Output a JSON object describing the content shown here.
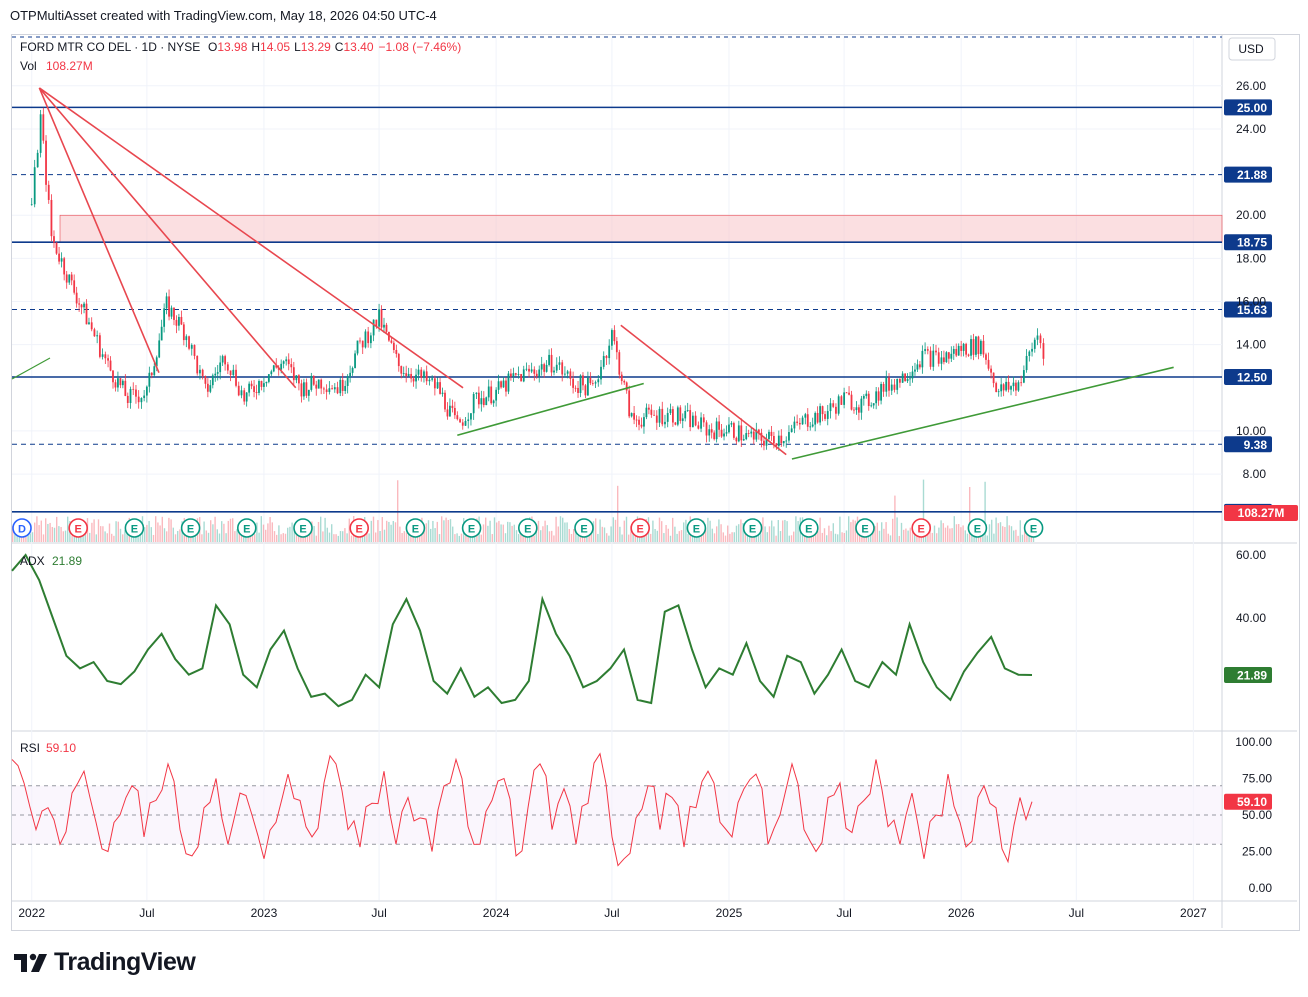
{
  "header": {
    "created_by": "OTPMultiAsset created with TradingView.com, May 18, 2026 04:50 UTC-4"
  },
  "footer": {
    "brand": "TradingView"
  },
  "colors": {
    "up": "#089981",
    "down": "#f23645",
    "level": "#0d3a8c",
    "trend_green": "#3f9a37",
    "trend_red": "#e8474f",
    "adx": "#2e7d32",
    "rsi": "#f23645",
    "zone": "#f7c5c8"
  },
  "chart_data": [
    {
      "type": "candlestick",
      "title": "FORD MTR CO DEL · 1D · NYSE",
      "ohlc": {
        "open_label": "O",
        "open": "13.98",
        "high_label": "H",
        "high": "14.05",
        "low_label": "L",
        "low": "13.29",
        "close_label": "C",
        "close": "13.40",
        "change": "−1.08 (−7.46%)"
      },
      "volume": {
        "label": "Vol",
        "value": "108.27M"
      },
      "currency": "USD",
      "yticks": [
        "26.00",
        "24.00",
        "20.00",
        "18.00",
        "16.00",
        "14.00",
        "10.00",
        "8.00"
      ],
      "ylim": [
        6.25,
        26.0
      ],
      "xticks": [
        "2022",
        "Jul",
        "2023",
        "Jul",
        "2024",
        "Jul",
        "2025",
        "Jul",
        "2026",
        "Jul",
        "2027"
      ],
      "horizontal_levels": [
        {
          "value": 25.0,
          "label": "25.00",
          "style": "solid"
        },
        {
          "value": 21.88,
          "label": "21.88",
          "style": "dashed"
        },
        {
          "value": 18.75,
          "label": "18.75",
          "style": "solid"
        },
        {
          "value": 15.63,
          "label": "15.63",
          "style": "dashed"
        },
        {
          "value": 12.5,
          "label": "12.50",
          "style": "solid"
        },
        {
          "value": 9.38,
          "label": "9.38",
          "style": "dashed"
        },
        {
          "value": 6.25,
          "label": "6.25",
          "style": "solid"
        }
      ],
      "resistance_zone": [
        18.75,
        20.0
      ],
      "approx_close_series": [
        {
          "date": "2022-01-01",
          "close": 20.5
        },
        {
          "date": "2022-01-15",
          "close": 24.5
        },
        {
          "date": "2022-02-01",
          "close": 19.0
        },
        {
          "date": "2022-03-01",
          "close": 17.0
        },
        {
          "date": "2022-04-01",
          "close": 15.0
        },
        {
          "date": "2022-05-01",
          "close": 13.0
        },
        {
          "date": "2022-06-01",
          "close": 11.5
        },
        {
          "date": "2022-07-01",
          "close": 11.8
        },
        {
          "date": "2022-08-01",
          "close": 15.8
        },
        {
          "date": "2022-09-01",
          "close": 14.5
        },
        {
          "date": "2022-10-01",
          "close": 11.8
        },
        {
          "date": "2022-11-01",
          "close": 13.5
        },
        {
          "date": "2022-12-01",
          "close": 11.5
        },
        {
          "date": "2023-01-01",
          "close": 12.5
        },
        {
          "date": "2023-02-01",
          "close": 13.2
        },
        {
          "date": "2023-03-01",
          "close": 12.0
        },
        {
          "date": "2023-04-01",
          "close": 12.3
        },
        {
          "date": "2023-05-01",
          "close": 12.0
        },
        {
          "date": "2023-06-01",
          "close": 14.0
        },
        {
          "date": "2023-07-01",
          "close": 15.2
        },
        {
          "date": "2023-08-01",
          "close": 13.0
        },
        {
          "date": "2023-09-01",
          "close": 12.5
        },
        {
          "date": "2023-10-01",
          "close": 12.0
        },
        {
          "date": "2023-11-01",
          "close": 10.2
        },
        {
          "date": "2023-12-01",
          "close": 11.5
        },
        {
          "date": "2024-01-01",
          "close": 11.8
        },
        {
          "date": "2024-02-01",
          "close": 12.5
        },
        {
          "date": "2024-03-01",
          "close": 12.8
        },
        {
          "date": "2024-04-01",
          "close": 13.2
        },
        {
          "date": "2024-05-01",
          "close": 12.2
        },
        {
          "date": "2024-06-01",
          "close": 12.0
        },
        {
          "date": "2024-07-01",
          "close": 14.5
        },
        {
          "date": "2024-08-01",
          "close": 10.5
        },
        {
          "date": "2024-09-01",
          "close": 10.7
        },
        {
          "date": "2024-10-01",
          "close": 10.8
        },
        {
          "date": "2024-11-01",
          "close": 10.5
        },
        {
          "date": "2024-12-01",
          "close": 10.0
        },
        {
          "date": "2025-01-01",
          "close": 10.1
        },
        {
          "date": "2025-02-01",
          "close": 9.7
        },
        {
          "date": "2025-03-01",
          "close": 9.6
        },
        {
          "date": "2025-04-01",
          "close": 9.8
        },
        {
          "date": "2025-05-01",
          "close": 10.5
        },
        {
          "date": "2025-06-01",
          "close": 10.8
        },
        {
          "date": "2025-07-01",
          "close": 11.5
        },
        {
          "date": "2025-08-01",
          "close": 11.2
        },
        {
          "date": "2025-09-01",
          "close": 12.0
        },
        {
          "date": "2025-10-01",
          "close": 12.5
        },
        {
          "date": "2025-11-01",
          "close": 13.5
        },
        {
          "date": "2025-12-01",
          "close": 13.3
        },
        {
          "date": "2026-01-01",
          "close": 13.8
        },
        {
          "date": "2026-02-01",
          "close": 14.0
        },
        {
          "date": "2026-03-01",
          "close": 11.8
        },
        {
          "date": "2026-04-01",
          "close": 12.2
        },
        {
          "date": "2026-05-01",
          "close": 14.5
        },
        {
          "date": "2026-05-15",
          "close": 13.4
        }
      ],
      "trendlines": [
        {
          "color": "red",
          "from": {
            "date": "2022-01-13",
            "price": 25.9
          },
          "to": {
            "date": "2022-07-20",
            "price": 12.7
          }
        },
        {
          "color": "red",
          "from": {
            "date": "2022-01-13",
            "price": 25.9
          },
          "to": {
            "date": "2023-02-20",
            "price": 12.0
          }
        },
        {
          "color": "red",
          "from": {
            "date": "2022-01-13",
            "price": 25.9
          },
          "to": {
            "date": "2023-11-10",
            "price": 12.0
          }
        },
        {
          "color": "red",
          "from": {
            "date": "2024-07-15",
            "price": 14.9
          },
          "to": {
            "date": "2025-04-01",
            "price": 8.9
          }
        },
        {
          "color": "green",
          "from": {
            "date": "2023-11-01",
            "price": 9.8
          },
          "to": {
            "date": "2024-08-20",
            "price": 12.2
          }
        },
        {
          "color": "green",
          "from": {
            "date": "2025-04-10",
            "price": 8.7
          },
          "to": {
            "date": "2026-12-01",
            "price": 12.95
          }
        }
      ],
      "event_markers": [
        "D",
        "E",
        "E",
        "E",
        "E",
        "E",
        "E",
        "E",
        "E",
        "E",
        "E",
        "E",
        "E",
        "E",
        "E",
        "E",
        "E",
        "E",
        "E"
      ]
    },
    {
      "type": "line",
      "title": "ADX",
      "value_label": "21.89",
      "yticks": [
        "60.00",
        "40.00",
        "21.89"
      ],
      "ylim": [
        5,
        65
      ],
      "series": [
        {
          "name": "ADX",
          "values": [
            55,
            60,
            52,
            40,
            28,
            24,
            26,
            20,
            19,
            23,
            30,
            35,
            27,
            22,
            24,
            44,
            38,
            22,
            18,
            30,
            36,
            24,
            15,
            16,
            12,
            14,
            22,
            18,
            38,
            46,
            36,
            20,
            16,
            24,
            15,
            18,
            13,
            14,
            20,
            46,
            35,
            28,
            18,
            20,
            24,
            30,
            14,
            13,
            42,
            44,
            30,
            18,
            24,
            22,
            32,
            20,
            15,
            28,
            26,
            16,
            22,
            30,
            20,
            18,
            26,
            22,
            38,
            26,
            18,
            14,
            23,
            29,
            34,
            24,
            22,
            21.89
          ]
        }
      ]
    },
    {
      "type": "line",
      "title": "RSI",
      "value_label": "59.10",
      "yticks": [
        "100.00",
        "75.00",
        "50.00",
        "25.00",
        "0.00"
      ],
      "ylim": [
        0,
        100
      ],
      "bands": [
        30,
        50,
        70
      ],
      "series": [
        {
          "name": "RSI",
          "values": [
            88,
            72,
            40,
            55,
            30,
            65,
            80,
            45,
            25,
            50,
            70,
            35,
            60,
            85,
            40,
            22,
            55,
            75,
            30,
            65,
            50,
            20,
            45,
            78,
            60,
            35,
            72,
            85,
            40,
            28,
            58,
            80,
            30,
            62,
            48,
            25,
            70,
            88,
            42,
            30,
            60,
            75,
            22,
            55,
            85,
            40,
            68,
            30,
            58,
            92,
            35,
            20,
            48,
            70,
            40,
            62,
            28,
            55,
            80,
            45,
            35,
            68,
            78,
            30,
            50,
            85,
            40,
            25,
            62,
            72,
            38,
            60,
            88,
            42,
            30,
            65,
            20,
            50,
            78,
            45,
            32,
            70,
            55,
            18,
            62,
            59.1
          ]
        }
      ]
    }
  ]
}
